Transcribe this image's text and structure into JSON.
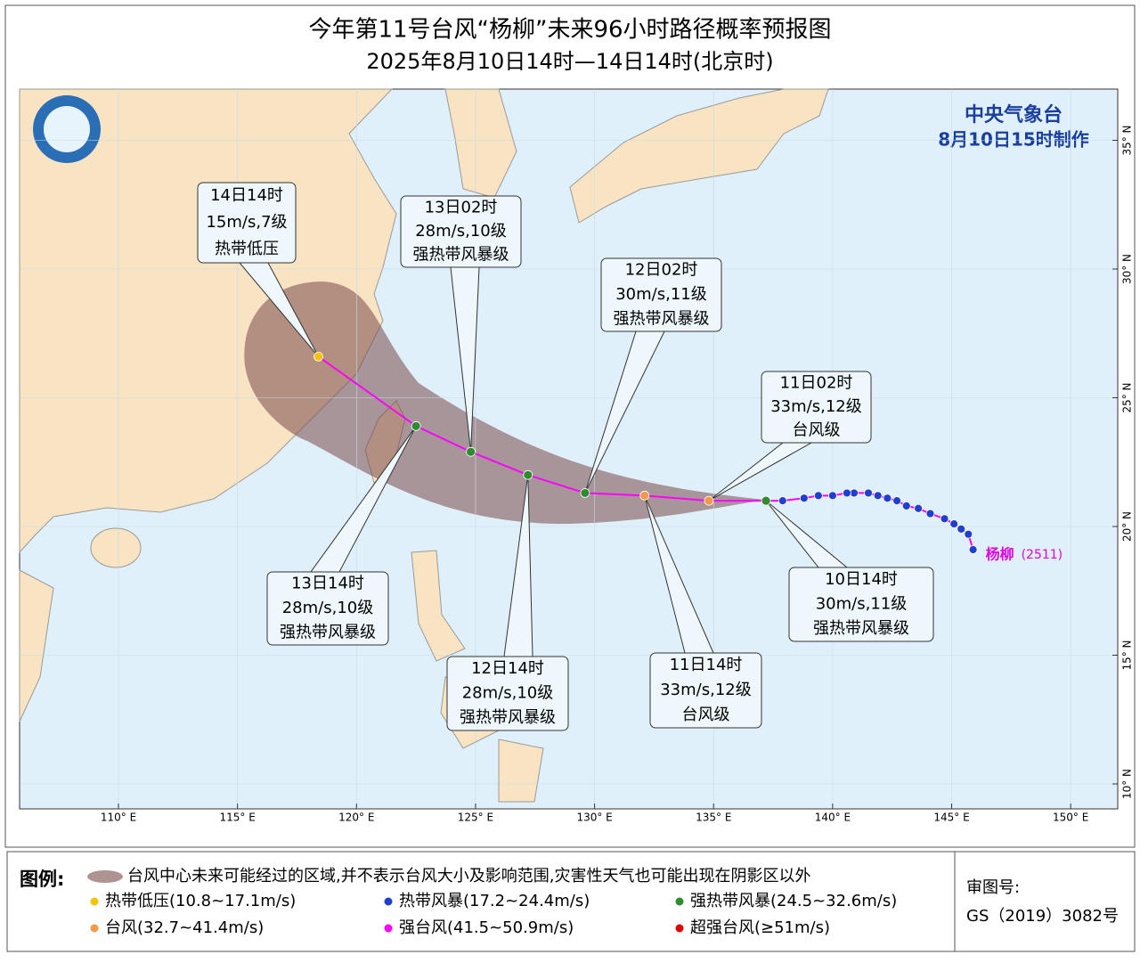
{
  "title": {
    "line1": "今年第11号台风“杨柳”未来96小时路径概率预报图",
    "line2": "2025年8月10日14时—14日14时(北京时)"
  },
  "issuer": {
    "name": "中央气象台",
    "time": "8月10日15时制作"
  },
  "map": {
    "lon_ticks": [
      {
        "value": 110,
        "label": "110° E"
      },
      {
        "value": 115,
        "label": "115° E"
      },
      {
        "value": 120,
        "label": "120° E"
      },
      {
        "value": 125,
        "label": "125° E"
      },
      {
        "value": 130,
        "label": "130° E"
      },
      {
        "value": 135,
        "label": "135° E"
      },
      {
        "value": 140,
        "label": "140° E"
      },
      {
        "value": 145,
        "label": "145° E"
      },
      {
        "value": 150,
        "label": "150° E"
      }
    ],
    "lat_ticks": [
      {
        "value": 10,
        "label": "10° N"
      },
      {
        "value": 15,
        "label": "15° N"
      },
      {
        "value": 20,
        "label": "20° N"
      },
      {
        "value": 25,
        "label": "25° N"
      },
      {
        "value": 30,
        "label": "30° N"
      },
      {
        "value": 35,
        "label": "35° N"
      }
    ],
    "past_color": "#1f3fd0",
    "past_track": [
      {
        "lon": 145.9,
        "lat": 19.1
      },
      {
        "lon": 145.7,
        "lat": 19.7
      },
      {
        "lon": 145.4,
        "lat": 19.9
      },
      {
        "lon": 145.1,
        "lat": 20.1
      },
      {
        "lon": 144.7,
        "lat": 20.3
      },
      {
        "lon": 144.1,
        "lat": 20.5
      },
      {
        "lon": 143.6,
        "lat": 20.7
      },
      {
        "lon": 143.1,
        "lat": 20.8
      },
      {
        "lon": 142.7,
        "lat": 21.0
      },
      {
        "lon": 142.3,
        "lat": 21.1
      },
      {
        "lon": 141.9,
        "lat": 21.2
      },
      {
        "lon": 141.5,
        "lat": 21.3
      },
      {
        "lon": 140.9,
        "lat": 21.3
      },
      {
        "lon": 140.6,
        "lat": 21.3
      },
      {
        "lon": 140.0,
        "lat": 21.2
      },
      {
        "lon": 139.4,
        "lat": 21.2
      },
      {
        "lon": 138.8,
        "lat": 21.1
      },
      {
        "lon": 137.9,
        "lat": 21.0
      }
    ],
    "forecast": [
      {
        "lon": 137.2,
        "lat": 21.0,
        "color": "#2e8b2e",
        "time": "10日14时",
        "wind": "30m/s,11级",
        "level": "强热带风暴级"
      },
      {
        "lon": 134.8,
        "lat": 21.0,
        "color": "#f39a4a",
        "time": "11日02时",
        "wind": "33m/s,12级",
        "level": "台风级"
      },
      {
        "lon": 132.1,
        "lat": 21.2,
        "color": "#f39a4a",
        "time": "11日14时",
        "wind": "33m/s,12级",
        "level": "台风级"
      },
      {
        "lon": 129.6,
        "lat": 21.3,
        "color": "#2e8b2e",
        "time": "12日02时",
        "wind": "30m/s,11级",
        "level": "强热带风暴级"
      },
      {
        "lon": 127.2,
        "lat": 22.0,
        "color": "#2e8b2e",
        "time": "12日14时",
        "wind": "28m/s,10级",
        "level": "强热带风暴级"
      },
      {
        "lon": 124.8,
        "lat": 22.9,
        "color": "#2e8b2e",
        "time": "13日02时",
        "wind": "28m/s,10级",
        "level": "强热带风暴级"
      },
      {
        "lon": 122.5,
        "lat": 23.9,
        "color": "#2e8b2e",
        "time": "13日14时",
        "wind": "28m/s,10级",
        "level": "强热带风暴级"
      },
      {
        "lon": 118.4,
        "lat": 26.6,
        "color": "#f5c400",
        "time": "14日14时",
        "wind": "15m/s,7级",
        "level": "热带低压"
      }
    ],
    "track_color": "#ff00ff",
    "storm": {
      "name": "杨柳",
      "code": "(2511)"
    }
  },
  "legend": {
    "title": "图例:",
    "cone": "台风中心未来可能经过的区域,并不表示台风大小及影响范围,灾害性天气也可能出现在阴影区以外",
    "items": [
      {
        "label": "热带低压(10.8~17.1m/s)",
        "color": "#f5c400"
      },
      {
        "label": "热带风暴(17.2~24.4m/s)",
        "color": "#1f3fd0"
      },
      {
        "label": "强热带风暴(24.5~32.6m/s)",
        "color": "#2e8b2e"
      },
      {
        "label": "台风(32.7~41.4m/s)",
        "color": "#f39a4a"
      },
      {
        "label": "强台风(41.5~50.9m/s)",
        "color": "#ff00ff"
      },
      {
        "label": "超强台风(≥51m/s)",
        "color": "#e00000"
      }
    ]
  },
  "review": {
    "label": "审图号:",
    "number": "GS（2019）3082号"
  }
}
